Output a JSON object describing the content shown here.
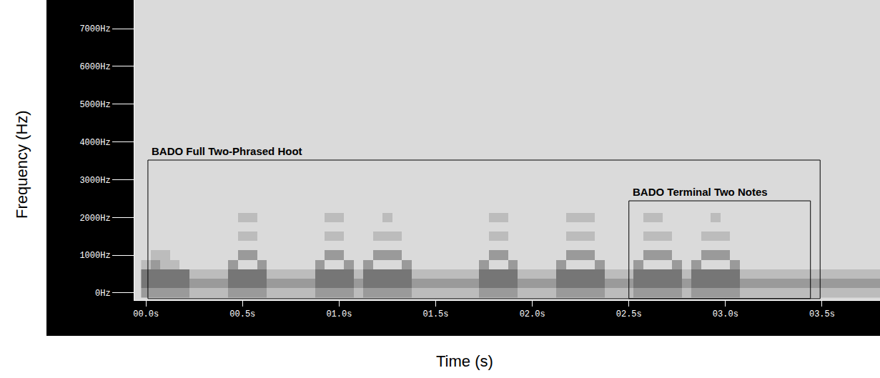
{
  "chart_data": {
    "type": "heatmap",
    "x_label": "Time (s)",
    "y_label": "Frequency (Hz)",
    "x": [
      0,
      0.05,
      0.1,
      0.15,
      0.2,
      0.25,
      0.3,
      0.35,
      0.4,
      0.45,
      0.5,
      0.55,
      0.6,
      0.65,
      0.7,
      0.75,
      0.8,
      0.85,
      0.9,
      0.95,
      1,
      1.05,
      1.1,
      1.15,
      1.2,
      1.25,
      1.3,
      1.35,
      1.4,
      1.45,
      1.5,
      1.55,
      1.6,
      1.65,
      1.7,
      1.75,
      1.8,
      1.85,
      1.9,
      1.95,
      2,
      2.05,
      2.1,
      2.15,
      2.2,
      2.25,
      2.3,
      2.35,
      2.4,
      2.45,
      2.5,
      2.55,
      2.6,
      2.65,
      2.7,
      2.75,
      2.8,
      2.85,
      2.9,
      2.95,
      3,
      3.05,
      3.1,
      3.15,
      3.2,
      3.25,
      3.3,
      3.35,
      3.4,
      3.45,
      3.5,
      3.55,
      3.6,
      3.65,
      3.7,
      3.75,
      3.8
    ],
    "y": [
      0,
      250,
      500,
      750,
      1000,
      1250,
      1500,
      1750,
      2000,
      2250
    ],
    "z": [
      [
        2,
        2,
        2,
        2,
        2,
        1,
        1,
        1,
        1,
        2,
        2,
        2,
        2,
        1,
        1,
        1,
        1,
        1,
        2,
        2,
        2,
        2,
        1,
        2,
        2,
        2,
        2,
        2,
        1,
        1,
        1,
        1,
        1,
        1,
        1,
        2,
        2,
        2,
        2,
        1,
        1,
        1,
        1,
        2,
        2,
        2,
        2,
        2,
        1,
        1,
        1,
        2,
        2,
        2,
        2,
        2,
        1,
        2,
        2,
        2,
        2,
        2,
        1,
        1,
        1,
        1,
        1,
        1,
        1,
        1,
        1,
        1,
        1,
        1,
        1,
        1,
        1
      ],
      [
        3,
        3,
        3,
        3,
        3,
        2,
        2,
        2,
        2,
        3,
        3,
        3,
        3,
        2,
        2,
        2,
        2,
        2,
        3,
        3,
        3,
        3,
        2,
        3,
        3,
        3,
        3,
        3,
        2,
        2,
        2,
        2,
        2,
        2,
        2,
        3,
        3,
        3,
        3,
        2,
        2,
        2,
        2,
        3,
        3,
        3,
        3,
        3,
        2,
        2,
        2,
        3,
        3,
        3,
        3,
        3,
        2,
        3,
        3,
        3,
        3,
        3,
        2,
        2,
        2,
        2,
        2,
        2,
        2,
        2,
        2,
        2,
        2,
        2,
        2,
        2,
        2
      ],
      [
        3,
        3,
        3,
        3,
        3,
        1,
        1,
        1,
        1,
        3,
        3,
        3,
        3,
        1,
        1,
        1,
        1,
        1,
        3,
        3,
        3,
        3,
        1,
        3,
        3,
        3,
        3,
        3,
        1,
        1,
        1,
        1,
        1,
        1,
        1,
        3,
        3,
        3,
        3,
        1,
        1,
        1,
        1,
        3,
        3,
        3,
        3,
        3,
        1,
        1,
        1,
        3,
        3,
        3,
        3,
        3,
        1,
        3,
        3,
        3,
        3,
        3,
        1,
        1,
        1,
        1,
        1,
        1,
        1,
        1,
        1,
        1,
        1,
        1,
        1,
        1,
        1
      ],
      [
        1,
        2,
        1,
        1,
        0,
        0,
        0,
        0,
        0,
        2,
        0,
        0,
        2,
        0,
        0,
        0,
        0,
        0,
        2,
        0,
        0,
        2,
        0,
        2,
        0,
        0,
        0,
        2,
        0,
        0,
        0,
        0,
        0,
        0,
        0,
        2,
        0,
        0,
        2,
        0,
        0,
        0,
        0,
        2,
        0,
        0,
        0,
        2,
        0,
        0,
        0,
        2,
        0,
        0,
        0,
        2,
        0,
        2,
        0,
        0,
        0,
        2,
        0,
        0,
        0,
        0,
        0,
        0,
        0,
        0,
        0,
        0,
        0,
        0,
        0,
        0,
        0
      ],
      [
        0,
        1,
        1,
        0,
        0,
        0,
        0,
        0,
        0,
        0,
        2,
        2,
        0,
        0,
        0,
        0,
        0,
        0,
        0,
        2,
        2,
        0,
        0,
        0,
        2,
        2,
        2,
        0,
        0,
        0,
        0,
        0,
        0,
        0,
        0,
        0,
        2,
        2,
        0,
        0,
        0,
        0,
        0,
        0,
        2,
        2,
        2,
        0,
        0,
        0,
        0,
        0,
        2,
        2,
        2,
        0,
        0,
        0,
        2,
        2,
        2,
        0,
        0,
        0,
        0,
        0,
        0,
        0,
        0,
        0,
        0,
        0,
        0,
        0,
        0,
        0,
        0
      ],
      [
        0,
        0,
        0,
        0,
        0,
        0,
        0,
        0,
        0,
        0,
        0,
        0,
        0,
        0,
        0,
        0,
        0,
        0,
        0,
        0,
        0,
        0,
        0,
        0,
        0,
        0,
        0,
        0,
        0,
        0,
        0,
        0,
        0,
        0,
        0,
        0,
        0,
        0,
        0,
        0,
        0,
        0,
        0,
        0,
        0,
        0,
        0,
        0,
        0,
        0,
        0,
        0,
        0,
        0,
        0,
        0,
        0,
        0,
        0,
        0,
        0,
        0,
        0,
        0,
        0,
        0,
        0,
        0,
        0,
        0,
        0,
        0,
        0,
        0,
        0,
        0,
        0
      ],
      [
        0,
        0,
        0,
        0,
        0,
        0,
        0,
        0,
        0,
        0,
        1,
        1,
        0,
        0,
        0,
        0,
        0,
        0,
        0,
        1,
        1,
        0,
        0,
        0,
        1,
        1,
        1,
        0,
        0,
        0,
        0,
        0,
        0,
        0,
        0,
        0,
        1,
        1,
        0,
        0,
        0,
        0,
        0,
        0,
        1,
        1,
        1,
        0,
        0,
        0,
        0,
        0,
        1,
        1,
        1,
        0,
        0,
        0,
        1,
        1,
        1,
        0,
        0,
        0,
        0,
        0,
        0,
        0,
        0,
        0,
        0,
        0,
        0,
        0,
        0,
        0,
        0
      ],
      [
        0,
        0,
        0,
        0,
        0,
        0,
        0,
        0,
        0,
        0,
        0,
        0,
        0,
        0,
        0,
        0,
        0,
        0,
        0,
        0,
        0,
        0,
        0,
        0,
        0,
        0,
        0,
        0,
        0,
        0,
        0,
        0,
        0,
        0,
        0,
        0,
        0,
        0,
        0,
        0,
        0,
        0,
        0,
        0,
        0,
        0,
        0,
        0,
        0,
        0,
        0,
        0,
        0,
        0,
        0,
        0,
        0,
        0,
        0,
        0,
        0,
        0,
        0,
        0,
        0,
        0,
        0,
        0,
        0,
        0,
        0,
        0,
        0,
        0,
        0,
        0,
        0
      ],
      [
        0,
        0,
        0,
        0,
        0,
        0,
        0,
        0,
        0,
        0,
        1,
        1,
        0,
        0,
        0,
        0,
        0,
        0,
        0,
        1,
        1,
        0,
        0,
        0,
        0,
        1,
        0,
        0,
        0,
        0,
        0,
        0,
        0,
        0,
        0,
        0,
        1,
        1,
        0,
        0,
        0,
        0,
        0,
        0,
        1,
        1,
        1,
        0,
        0,
        0,
        0,
        0,
        1,
        1,
        0,
        0,
        0,
        0,
        0,
        1,
        0,
        0,
        0,
        0,
        0,
        0,
        0,
        0,
        0,
        0,
        0,
        0,
        0,
        0,
        0,
        0,
        0
      ],
      [
        0,
        0,
        0,
        0,
        0,
        0,
        0,
        0,
        0,
        0,
        0,
        0,
        0,
        0,
        0,
        0,
        0,
        0,
        0,
        0,
        0,
        0,
        0,
        0,
        0,
        0,
        0,
        0,
        0,
        0,
        0,
        0,
        0,
        0,
        0,
        0,
        0,
        0,
        0,
        0,
        0,
        0,
        0,
        0,
        0,
        0,
        0,
        0,
        0,
        0,
        0,
        0,
        0,
        0,
        0,
        0,
        0,
        0,
        0,
        0,
        0,
        0,
        0,
        0,
        0,
        0,
        0,
        0,
        0,
        0,
        0,
        0,
        0,
        0,
        0,
        0,
        0
      ]
    ],
    "zlim": [
      0,
      3
    ],
    "xlim": [
      -0.06,
      3.8
    ],
    "ylim": [
      -190,
      7760
    ],
    "xticks": [
      {
        "value": 0,
        "label": "00.0s"
      },
      {
        "value": 0.5,
        "label": "00.5s"
      },
      {
        "value": 1,
        "label": "01.0s"
      },
      {
        "value": 1.5,
        "label": "01.5s"
      },
      {
        "value": 2,
        "label": "02.0s"
      },
      {
        "value": 2.5,
        "label": "02.5s"
      },
      {
        "value": 3,
        "label": "03.0s"
      },
      {
        "value": 3.5,
        "label": "03.5s"
      }
    ],
    "yticks": [
      {
        "value": 0,
        "label": "0Hz"
      },
      {
        "value": 1000,
        "label": "1000Hz"
      },
      {
        "value": 2000,
        "label": "2000Hz"
      },
      {
        "value": 3000,
        "label": "3000Hz"
      },
      {
        "value": 4000,
        "label": "4000Hz"
      },
      {
        "value": 5000,
        "label": "5000Hz"
      },
      {
        "value": 6000,
        "label": "6000Hz"
      },
      {
        "value": 7000,
        "label": "7000Hz"
      }
    ],
    "grid": false,
    "regions": [
      {
        "text": "BADO Full Two-Phrased Hoot",
        "x0": 0.01,
        "x1": 3.49,
        "y0": -150,
        "y1": 3520
      },
      {
        "text": "BADO Terminal Two Notes",
        "x0": 2.5,
        "x1": 3.44,
        "y0": -150,
        "y1": 2440
      }
    ]
  }
}
